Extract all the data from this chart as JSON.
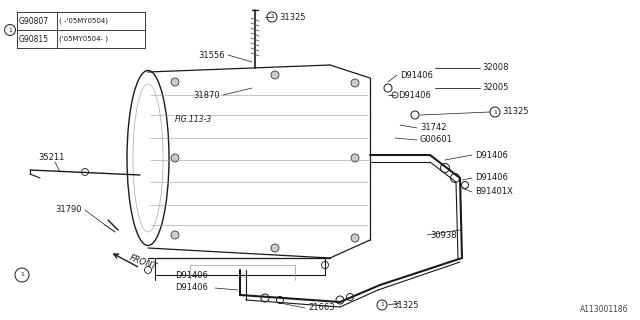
{
  "bg_color": "#ffffff",
  "line_color": "#1a1a1a",
  "fig_ref": "A113001186",
  "fig_label": "FIG.113-3",
  "front_label": "FRONT",
  "legend_rows": [
    [
      "G90807",
      "(",
      "-'05MY0504)"
    ],
    [
      "G90815",
      "('05MY0504-",
      ")"
    ]
  ],
  "parts": {
    "31325_top": "31325",
    "31556": "31556",
    "31870": "31870",
    "D91406_top1": "D91406",
    "D91406_top2": "D91406",
    "32008": "32008",
    "32005": "32005",
    "31325_mid": "31325",
    "31742": "31742",
    "G00601": "G00601",
    "D91406_mid": "D91406",
    "D91406_right1": "D91406",
    "B91401X": "B91401X",
    "30938": "30938",
    "35211": "35211",
    "31790": "31790",
    "D91406_bot1": "D91406",
    "D91406_bot2": "D91406",
    "21663": "21663",
    "31325_bot": "31325"
  }
}
